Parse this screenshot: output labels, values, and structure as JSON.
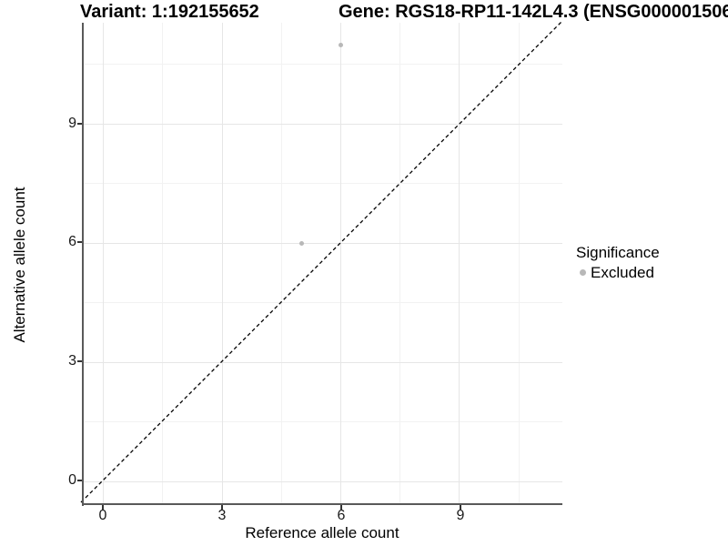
{
  "titles": {
    "variant": "Variant: 1:192155652",
    "gene": "Gene: RGS18-RP11-142L4.3 (ENSG000001506"
  },
  "axes": {
    "x_label": "Reference allele count",
    "y_label": "Alternative allele count",
    "x_ticks": [
      "0",
      "3",
      "6",
      "9"
    ],
    "y_ticks": [
      "0",
      "3",
      "6",
      "9"
    ]
  },
  "legend": {
    "title": "Significance",
    "items": [
      {
        "label": "Excluded",
        "color": "#b8b8b8"
      }
    ]
  },
  "chart_data": {
    "type": "scatter",
    "title": "Variant: 1:192155652 | Gene: RGS18-RP11-142L4.3 (ENSG000001506...)",
    "xlabel": "Reference allele count",
    "ylabel": "Alternative allele count",
    "points": [
      {
        "x": 6,
        "y": 11,
        "series": "Excluded"
      },
      {
        "x": 5,
        "y": 6,
        "series": "Excluded"
      }
    ],
    "point_color": "#b8b8b8",
    "identity_line": {
      "shown": true,
      "style": "dashed",
      "color": "#000000",
      "equation": "y = x"
    },
    "xlim": [
      -0.5,
      11.6
    ],
    "ylim": [
      -0.55,
      11.55
    ],
    "x_major_ticks": [
      0,
      3,
      6,
      9
    ],
    "y_major_ticks": [
      0,
      3,
      6,
      9
    ],
    "x_minor_gridlines": [
      1.5,
      4.5,
      7.5,
      10.5
    ],
    "y_minor_gridlines": [
      1.5,
      4.5,
      7.5,
      10.5
    ],
    "grid": true,
    "legend_position": "right",
    "grid_major_color": "#e6e6e6",
    "grid_minor_color": "#f2f2f2",
    "axis_line_color": "#595959"
  }
}
